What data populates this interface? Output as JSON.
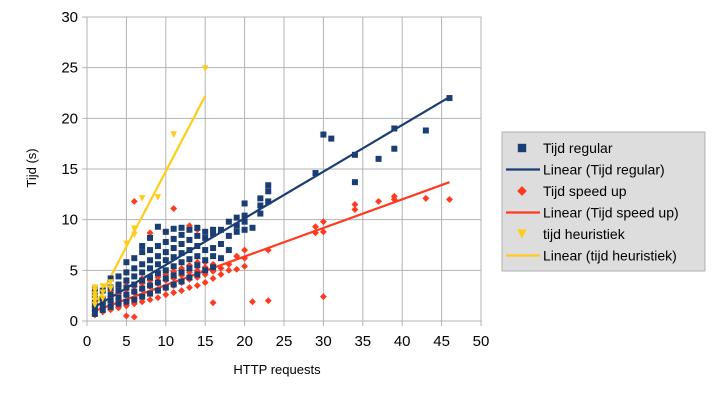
{
  "chart_data": {
    "type": "scatter",
    "xlabel": "HTTP requests",
    "ylabel": "Tijd (s)",
    "xlim": [
      0,
      50
    ],
    "ylim": [
      0,
      30
    ],
    "xticks": [
      "0",
      "5",
      "10",
      "15",
      "20",
      "25",
      "30",
      "35",
      "40",
      "45",
      "50"
    ],
    "yticks": [
      "0",
      "5",
      "10",
      "15",
      "20",
      "25",
      "30"
    ],
    "grid": true,
    "legend_position": "right",
    "legend": [
      {
        "label": "Tijd regular",
        "kind": "marker",
        "shape": "square",
        "color": "#1a3e73"
      },
      {
        "label": "Linear (Tijd regular)",
        "kind": "line",
        "color": "#1a3e73"
      },
      {
        "label": "Tijd speed up",
        "kind": "marker",
        "shape": "diamond",
        "color": "#ff3b1f"
      },
      {
        "label": "Linear (Tijd speed up)",
        "kind": "line",
        "color": "#ff3b1f"
      },
      {
        "label": "tijd heuristiek",
        "kind": "marker",
        "shape": "triangle",
        "color": "#ffcc1a"
      },
      {
        "label": "Linear (tijd heuristiek)",
        "kind": "line",
        "color": "#ffcc1a"
      }
    ],
    "series": [
      {
        "name": "Tijd regular",
        "marker": "square",
        "color": "#1a3e73",
        "points": [
          [
            1,
            0.7
          ],
          [
            1,
            1.2
          ],
          [
            1,
            1.8
          ],
          [
            1,
            2.5
          ],
          [
            1,
            3.1
          ],
          [
            2,
            1.1
          ],
          [
            2,
            1.6
          ],
          [
            2,
            2.2
          ],
          [
            2,
            3.0
          ],
          [
            3,
            1.4
          ],
          [
            3,
            2.0
          ],
          [
            3,
            2.6
          ],
          [
            3,
            3.3
          ],
          [
            3,
            4.2
          ],
          [
            4,
            1.7
          ],
          [
            4,
            2.3
          ],
          [
            4,
            3.0
          ],
          [
            4,
            3.6
          ],
          [
            4,
            4.4
          ],
          [
            5,
            1.9
          ],
          [
            5,
            2.6
          ],
          [
            5,
            3.3
          ],
          [
            5,
            4.0
          ],
          [
            5,
            4.8
          ],
          [
            5,
            5.8
          ],
          [
            6,
            2.1
          ],
          [
            6,
            2.9
          ],
          [
            6,
            3.6
          ],
          [
            6,
            4.4
          ],
          [
            6,
            5.2
          ],
          [
            6,
            6.2
          ],
          [
            7,
            2.4
          ],
          [
            7,
            3.2
          ],
          [
            7,
            4.0
          ],
          [
            7,
            4.8
          ],
          [
            7,
            5.6
          ],
          [
            7,
            6.8
          ],
          [
            7,
            7.4
          ],
          [
            8,
            2.7
          ],
          [
            8,
            3.5
          ],
          [
            8,
            4.3
          ],
          [
            8,
            5.2
          ],
          [
            8,
            6.0
          ],
          [
            8,
            7.0
          ],
          [
            8,
            8.2
          ],
          [
            9,
            3.0
          ],
          [
            9,
            3.8
          ],
          [
            9,
            4.7
          ],
          [
            9,
            5.6
          ],
          [
            9,
            6.4
          ],
          [
            9,
            7.4
          ],
          [
            9,
            9.3
          ],
          [
            10,
            3.3
          ],
          [
            10,
            4.2
          ],
          [
            10,
            5.0
          ],
          [
            10,
            6.0
          ],
          [
            10,
            6.8
          ],
          [
            10,
            7.8
          ],
          [
            10,
            8.8
          ],
          [
            11,
            3.6
          ],
          [
            11,
            4.5
          ],
          [
            11,
            5.4
          ],
          [
            11,
            6.3
          ],
          [
            11,
            7.2
          ],
          [
            11,
            8.1
          ],
          [
            11,
            9.1
          ],
          [
            12,
            3.9
          ],
          [
            12,
            4.8
          ],
          [
            12,
            5.8
          ],
          [
            12,
            6.7
          ],
          [
            12,
            7.6
          ],
          [
            12,
            8.5
          ],
          [
            12,
            9.2
          ],
          [
            13,
            4.3
          ],
          [
            13,
            5.2
          ],
          [
            13,
            6.1
          ],
          [
            13,
            7.0
          ],
          [
            13,
            8.0
          ],
          [
            13,
            9.0
          ],
          [
            14,
            4.6
          ],
          [
            14,
            5.5
          ],
          [
            14,
            6.4
          ],
          [
            14,
            7.4
          ],
          [
            14,
            8.4
          ],
          [
            14,
            9.2
          ],
          [
            15,
            5.0
          ],
          [
            15,
            6.0
          ],
          [
            15,
            7.0
          ],
          [
            15,
            8.2
          ],
          [
            15,
            8.8
          ],
          [
            16,
            5.3
          ],
          [
            16,
            6.4
          ],
          [
            16,
            7.2
          ],
          [
            16,
            8.6
          ],
          [
            16,
            9.0
          ],
          [
            17,
            6.2
          ],
          [
            17,
            7.6
          ],
          [
            17,
            9.0
          ],
          [
            18,
            7.0
          ],
          [
            18,
            8.4
          ],
          [
            18,
            9.8
          ],
          [
            19,
            8.8
          ],
          [
            19,
            9.4
          ],
          [
            19,
            10.2
          ],
          [
            20,
            9.0
          ],
          [
            20,
            9.8
          ],
          [
            20,
            10.4
          ],
          [
            20,
            11.6
          ],
          [
            21,
            9.2
          ],
          [
            22,
            10.6
          ],
          [
            22,
            11.4
          ],
          [
            22,
            12.1
          ],
          [
            23,
            11.8
          ],
          [
            23,
            12.8
          ],
          [
            23,
            13.4
          ],
          [
            29,
            14.6
          ],
          [
            30,
            18.4
          ],
          [
            31,
            18.0
          ],
          [
            34,
            13.7
          ],
          [
            34,
            16.4
          ],
          [
            37,
            16.0
          ],
          [
            39,
            17.0
          ],
          [
            39,
            19.0
          ],
          [
            43,
            18.8
          ],
          [
            46,
            22.0
          ]
        ]
      },
      {
        "name": "Tijd speed up",
        "marker": "diamond",
        "color": "#ff3b1f",
        "points": [
          [
            1,
            0.6
          ],
          [
            1,
            1.0
          ],
          [
            1,
            1.4
          ],
          [
            1,
            1.9
          ],
          [
            2,
            0.9
          ],
          [
            2,
            1.3
          ],
          [
            2,
            1.7
          ],
          [
            2,
            2.1
          ],
          [
            3,
            1.1
          ],
          [
            3,
            1.5
          ],
          [
            3,
            1.9
          ],
          [
            3,
            2.4
          ],
          [
            3,
            3.0
          ],
          [
            4,
            1.3
          ],
          [
            4,
            1.7
          ],
          [
            4,
            2.1
          ],
          [
            4,
            2.7
          ],
          [
            4,
            3.4
          ],
          [
            5,
            0.5
          ],
          [
            5,
            1.5
          ],
          [
            5,
            2.0
          ],
          [
            5,
            2.5
          ],
          [
            5,
            3.1
          ],
          [
            5,
            3.8
          ],
          [
            6,
            0.4
          ],
          [
            6,
            1.7
          ],
          [
            6,
            2.2
          ],
          [
            6,
            2.8
          ],
          [
            6,
            3.4
          ],
          [
            6,
            11.8
          ],
          [
            7,
            1.9
          ],
          [
            7,
            2.5
          ],
          [
            7,
            3.1
          ],
          [
            7,
            3.7
          ],
          [
            7,
            4.2
          ],
          [
            8,
            2.1
          ],
          [
            8,
            2.7
          ],
          [
            8,
            3.4
          ],
          [
            8,
            4.0
          ],
          [
            8,
            8.7
          ],
          [
            9,
            2.3
          ],
          [
            9,
            3.0
          ],
          [
            9,
            3.7
          ],
          [
            9,
            4.3
          ],
          [
            10,
            2.6
          ],
          [
            10,
            3.2
          ],
          [
            10,
            4.0
          ],
          [
            10,
            4.6
          ],
          [
            10,
            8.8
          ],
          [
            11,
            2.8
          ],
          [
            11,
            3.5
          ],
          [
            11,
            4.2
          ],
          [
            11,
            4.9
          ],
          [
            11,
            11.1
          ],
          [
            12,
            3.0
          ],
          [
            12,
            3.8
          ],
          [
            12,
            4.5
          ],
          [
            12,
            5.2
          ],
          [
            13,
            3.3
          ],
          [
            13,
            4.1
          ],
          [
            13,
            4.8
          ],
          [
            13,
            5.5
          ],
          [
            13,
            9.4
          ],
          [
            14,
            3.5
          ],
          [
            14,
            4.3
          ],
          [
            14,
            5.0
          ],
          [
            14,
            5.8
          ],
          [
            14,
            9.0
          ],
          [
            15,
            3.8
          ],
          [
            15,
            4.6
          ],
          [
            15,
            5.3
          ],
          [
            15,
            5.8
          ],
          [
            16,
            4.2
          ],
          [
            16,
            4.9
          ],
          [
            16,
            5.6
          ],
          [
            16,
            1.8
          ],
          [
            17,
            4.6
          ],
          [
            17,
            5.2
          ],
          [
            18,
            5.0
          ],
          [
            18,
            5.6
          ],
          [
            19,
            5.1
          ],
          [
            19,
            6.4
          ],
          [
            20,
            5.4
          ],
          [
            20,
            6.2
          ],
          [
            20,
            7.0
          ],
          [
            21,
            1.9
          ],
          [
            23,
            2.0
          ],
          [
            23,
            7.0
          ],
          [
            29,
            8.7
          ],
          [
            29,
            9.3
          ],
          [
            30,
            2.4
          ],
          [
            30,
            8.8
          ],
          [
            30,
            9.8
          ],
          [
            34,
            11.0
          ],
          [
            34,
            11.5
          ],
          [
            37,
            11.8
          ],
          [
            39,
            12.0
          ],
          [
            39,
            12.3
          ],
          [
            43,
            12.1
          ],
          [
            46,
            12.0
          ]
        ]
      },
      {
        "name": "tijd heuristiek",
        "marker": "triangle",
        "color": "#ffcc1a",
        "points": [
          [
            1,
            1.6
          ],
          [
            1,
            2.0
          ],
          [
            1,
            2.3
          ],
          [
            1,
            2.6
          ],
          [
            1,
            3.0
          ],
          [
            1,
            3.3
          ],
          [
            2,
            2.2
          ],
          [
            2,
            2.8
          ],
          [
            2,
            3.4
          ],
          [
            3,
            3.2
          ],
          [
            3,
            3.8
          ],
          [
            5,
            7.6
          ],
          [
            6,
            8.5
          ],
          [
            6,
            9.1
          ],
          [
            7,
            12.1
          ],
          [
            9,
            12.2
          ],
          [
            11,
            18.4
          ],
          [
            15,
            24.9
          ]
        ]
      }
    ],
    "trendlines": [
      {
        "name": "Linear (Tijd regular)",
        "color": "#1a3e73",
        "from": [
          1,
          1.4
        ],
        "to": [
          46,
          22.1
        ]
      },
      {
        "name": "Linear (Tijd speed up)",
        "color": "#ff3b1f",
        "from": [
          1,
          1.0
        ],
        "to": [
          46,
          13.7
        ]
      },
      {
        "name": "Linear (tijd heuristiek)",
        "color": "#ffcc1a",
        "from": [
          1,
          1.4
        ],
        "to": [
          15,
          22.2
        ]
      }
    ]
  }
}
